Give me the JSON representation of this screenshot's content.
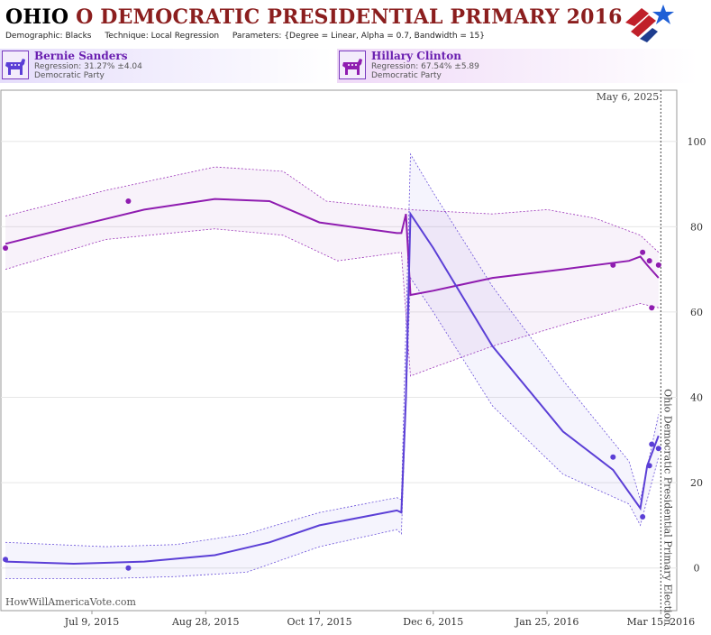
{
  "header": {
    "title_state": "OHIO",
    "title_rest": "O DEMOCRATIC PRESIDENTIAL PRIMARY 2016",
    "demographic_label": "Demographic:",
    "demographic_value": "Blacks",
    "technique_label": "Technique:",
    "technique_value": "Local Regression",
    "parameters_label": "Parameters:",
    "parameters_value": "{Degree = Linear, Alpha = 0.7, Bandwidth = 15}"
  },
  "candidates": [
    {
      "name": "Bernie Sanders",
      "regression": "Regression: 31.27% ±4.04",
      "party": "Democratic Party",
      "icon": "donkey-icon",
      "color": "#5b3fd6"
    },
    {
      "name": "Hillary Clinton",
      "regression": "Regression: 67.54% ±5.89",
      "party": "Democratic Party",
      "icon": "donkey-icon",
      "color": "#8f1cb0"
    }
  ],
  "watermark": "HowWillAmericaVote.com",
  "chart_data": {
    "type": "line",
    "x_ticks": [
      "Jul 9, 2015",
      "Aug 28, 2015",
      "Oct 17, 2015",
      "Dec 6, 2015",
      "Jan 25, 2016",
      "Mar 15, 2016"
    ],
    "y_ticks": [
      0,
      20,
      40,
      60,
      80,
      100
    ],
    "ylim": [
      -10,
      112
    ],
    "xlim": [
      "2015-05-30",
      "2016-03-22"
    ],
    "today_label": "May 6, 2025",
    "election_label": "Ohio Democratic Presidential Primary Election",
    "election_date": "2016-03-15",
    "series": [
      {
        "name": "Hillary Clinton",
        "color": "#8f1cb0",
        "points": [
          [
            "2015-06-01",
            75
          ],
          [
            "2015-07-25",
            86
          ],
          [
            "2016-02-23",
            71
          ],
          [
            "2016-03-07",
            74
          ],
          [
            "2016-03-10",
            72
          ],
          [
            "2016-03-11",
            61
          ],
          [
            "2016-03-14",
            71
          ]
        ],
        "trend": [
          [
            "2015-06-01",
            76
          ],
          [
            "2015-07-01",
            80
          ],
          [
            "2015-08-01",
            84
          ],
          [
            "2015-09-01",
            86.5
          ],
          [
            "2015-09-25",
            86
          ],
          [
            "2015-10-17",
            81
          ],
          [
            "2015-11-20",
            78.5
          ],
          [
            "2015-11-22",
            78.5
          ],
          [
            "2015-11-24",
            83
          ],
          [
            "2015-11-26",
            64
          ],
          [
            "2015-12-06",
            65
          ],
          [
            "2016-01-01",
            68
          ],
          [
            "2016-02-01",
            70
          ],
          [
            "2016-03-01",
            72
          ],
          [
            "2016-03-06",
            73
          ],
          [
            "2016-03-09",
            71
          ],
          [
            "2016-03-14",
            68
          ]
        ],
        "band_upper": [
          [
            "2015-06-01",
            82.5
          ],
          [
            "2015-07-15",
            88.5
          ],
          [
            "2015-09-01",
            94
          ],
          [
            "2015-10-01",
            93
          ],
          [
            "2015-10-20",
            86
          ],
          [
            "2015-11-25",
            84
          ],
          [
            "2016-01-01",
            83
          ],
          [
            "2016-01-25",
            84
          ],
          [
            "2016-02-15",
            82
          ],
          [
            "2016-03-06",
            78
          ],
          [
            "2016-03-14",
            74
          ]
        ],
        "band_lower": [
          [
            "2015-06-01",
            70
          ],
          [
            "2015-07-15",
            77
          ],
          [
            "2015-09-01",
            79.5
          ],
          [
            "2015-10-01",
            78
          ],
          [
            "2015-10-25",
            72
          ],
          [
            "2015-11-22",
            74
          ],
          [
            "2015-11-26",
            45
          ],
          [
            "2015-12-06",
            47
          ],
          [
            "2016-01-01",
            52
          ],
          [
            "2016-02-01",
            57
          ],
          [
            "2016-03-06",
            62
          ],
          [
            "2016-03-14",
            61
          ]
        ]
      },
      {
        "name": "Bernie Sanders",
        "color": "#5b3fd6",
        "points": [
          [
            "2015-06-01",
            2
          ],
          [
            "2015-07-25",
            0
          ],
          [
            "2016-02-23",
            26
          ],
          [
            "2016-03-07",
            12
          ],
          [
            "2016-03-10",
            24
          ],
          [
            "2016-03-11",
            29
          ],
          [
            "2016-03-14",
            28
          ]
        ],
        "trend": [
          [
            "2015-06-01",
            1.5
          ],
          [
            "2015-07-01",
            1
          ],
          [
            "2015-08-01",
            1.5
          ],
          [
            "2015-09-01",
            3
          ],
          [
            "2015-09-25",
            6
          ],
          [
            "2015-10-17",
            10
          ],
          [
            "2015-11-20",
            13.5
          ],
          [
            "2015-11-22",
            13
          ],
          [
            "2015-11-24",
            40
          ],
          [
            "2015-11-26",
            83
          ],
          [
            "2015-12-06",
            75
          ],
          [
            "2016-01-01",
            52
          ],
          [
            "2016-02-01",
            32
          ],
          [
            "2016-02-23",
            23
          ],
          [
            "2016-03-06",
            14
          ],
          [
            "2016-03-09",
            24
          ],
          [
            "2016-03-14",
            31
          ]
        ],
        "band_upper": [
          [
            "2015-06-01",
            6
          ],
          [
            "2015-07-15",
            5
          ],
          [
            "2015-08-15",
            5.5
          ],
          [
            "2015-09-15",
            8
          ],
          [
            "2015-10-17",
            13
          ],
          [
            "2015-11-20",
            16.5
          ],
          [
            "2015-11-22",
            16
          ],
          [
            "2015-11-26",
            97
          ],
          [
            "2015-12-06",
            88
          ],
          [
            "2016-01-01",
            66
          ],
          [
            "2016-02-01",
            44
          ],
          [
            "2016-03-01",
            25
          ],
          [
            "2016-03-06",
            16
          ],
          [
            "2016-03-14",
            36
          ]
        ],
        "band_lower": [
          [
            "2015-06-01",
            -2.5
          ],
          [
            "2015-07-15",
            -2.5
          ],
          [
            "2015-08-15",
            -2
          ],
          [
            "2015-09-15",
            -1
          ],
          [
            "2015-10-17",
            5
          ],
          [
            "2015-11-20",
            9
          ],
          [
            "2015-11-22",
            8
          ],
          [
            "2015-11-26",
            68
          ],
          [
            "2015-12-06",
            60
          ],
          [
            "2016-01-01",
            38
          ],
          [
            "2016-02-01",
            22
          ],
          [
            "2016-03-01",
            15
          ],
          [
            "2016-03-06",
            10
          ],
          [
            "2016-03-14",
            26
          ]
        ]
      }
    ]
  }
}
